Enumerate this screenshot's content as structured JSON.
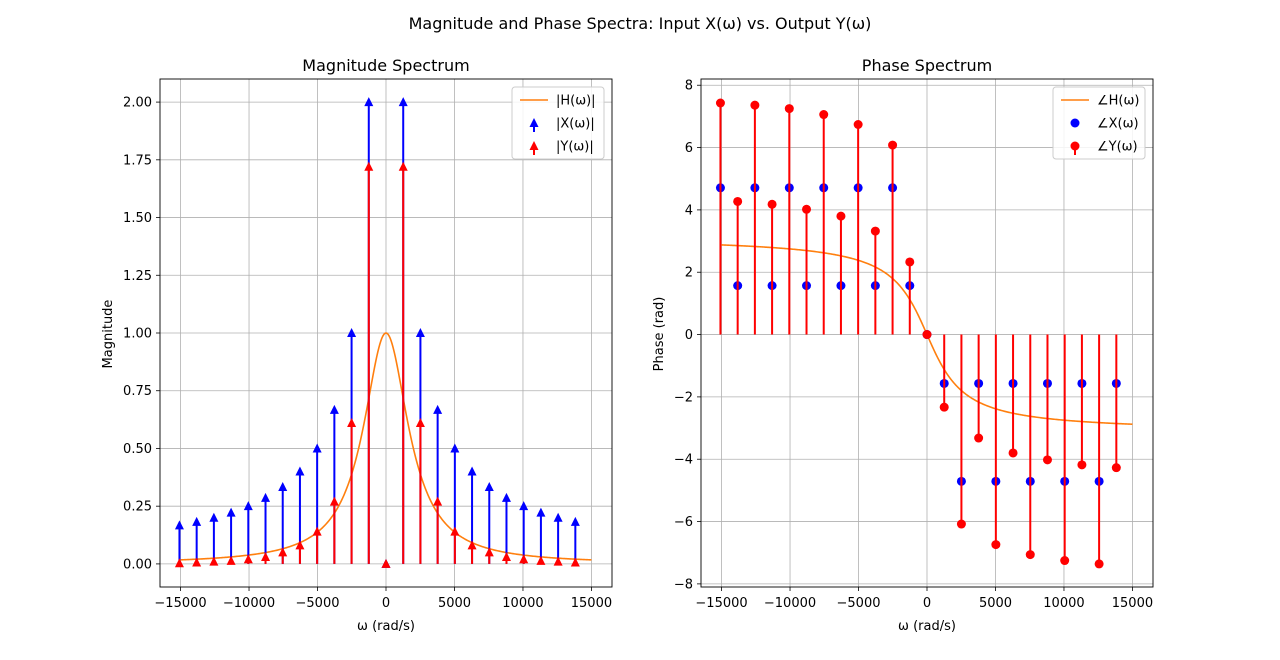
{
  "figure": {
    "suptitle": "Magnitude and Phase Spectra: Input X(ω) vs. Output Y(ω)"
  },
  "colors": {
    "input": "#0000ff",
    "output": "#ff0000",
    "filter": "#ff7f0e",
    "grid": "#b0b0b0"
  },
  "chart_data": [
    {
      "type": "stem",
      "title": "Magnitude Spectrum",
      "xlabel": "ω (rad/s)",
      "ylabel": "Magnitude",
      "xlim": [
        -16500,
        16500
      ],
      "ylim": [
        -0.1,
        2.1
      ],
      "xticks": [
        -15000,
        -10000,
        -5000,
        0,
        5000,
        10000,
        15000
      ],
      "xtick_labels": [
        "−15000",
        "−10000",
        "−5000",
        "0",
        "5000",
        "10000",
        "15000"
      ],
      "yticks": [
        0,
        0.25,
        0.5,
        0.75,
        1.0,
        1.25,
        1.5,
        1.75,
        2.0
      ],
      "ytick_labels": [
        "0.00",
        "0.25",
        "0.50",
        "0.75",
        "1.00",
        "1.25",
        "1.50",
        "1.75",
        "2.00"
      ],
      "grid": true,
      "legend_position": "top-right",
      "legend": [
        "|H(ω)|",
        "|X(ω)|",
        "|Y(ω)|"
      ],
      "series": [
        {
          "name": "|H(ω)|",
          "kind": "line",
          "curve": "lowpass_magnitude",
          "cutoff": 2000,
          "x_range": [
            -15000,
            15000
          ]
        },
        {
          "name": "|X(ω)|",
          "kind": "stem",
          "marker": "triangle",
          "x": [
            -15080,
            -13823,
            -12566,
            -11310,
            -10053,
            -8796,
            -7540,
            -6283,
            -5027,
            -3770,
            -2513,
            -1257,
            0,
            1257,
            2513,
            3770,
            5027,
            6283,
            7540,
            8796,
            10053,
            11310,
            12566,
            13823
          ],
          "y": [
            0.167,
            0.182,
            0.2,
            0.222,
            0.25,
            0.286,
            0.333,
            0.4,
            0.5,
            0.667,
            1.0,
            2.0,
            0,
            2.0,
            1.0,
            0.667,
            0.5,
            0.4,
            0.333,
            0.286,
            0.25,
            0.222,
            0.2,
            0.182
          ]
        },
        {
          "name": "|Y(ω)|",
          "kind": "stem",
          "marker": "triangle",
          "x": [
            -15080,
            -13823,
            -12566,
            -11310,
            -10053,
            -8796,
            -7540,
            -6283,
            -5027,
            -3770,
            -2513,
            -1257,
            0,
            1257,
            2513,
            3770,
            5027,
            6283,
            7540,
            8796,
            10053,
            11310,
            12566,
            13823
          ],
          "y": [
            0.003,
            0.006,
            0.01,
            0.013,
            0.02,
            0.03,
            0.05,
            0.08,
            0.14,
            0.27,
            0.61,
            1.72,
            0,
            1.72,
            0.61,
            0.27,
            0.14,
            0.08,
            0.05,
            0.03,
            0.02,
            0.013,
            0.01,
            0.006
          ]
        }
      ]
    },
    {
      "type": "stem",
      "title": "Phase Spectrum",
      "xlabel": "ω (rad/s)",
      "ylabel": "Phase (rad)",
      "xlim": [
        -16500,
        16500
      ],
      "ylim": [
        -8.1,
        8.2
      ],
      "xticks": [
        -15000,
        -10000,
        -5000,
        0,
        5000,
        10000,
        15000
      ],
      "xtick_labels": [
        "−15000",
        "−10000",
        "−5000",
        "0",
        "5000",
        "10000",
        "15000"
      ],
      "yticks": [
        -8,
        -6,
        -4,
        -2,
        0,
        2,
        4,
        6,
        8
      ],
      "ytick_labels": [
        "−8",
        "−6",
        "−4",
        "−2",
        "0",
        "2",
        "4",
        "6",
        "8"
      ],
      "grid": true,
      "legend_position": "top-right",
      "legend": [
        "∠H(ω)",
        "∠X(ω)",
        "∠Y(ω)"
      ],
      "series": [
        {
          "name": "∠H(ω)",
          "kind": "line",
          "curve": "lowpass_phase",
          "cutoff": 2000,
          "x_range": [
            -15000,
            15000
          ]
        },
        {
          "name": "∠X(ω)",
          "kind": "markers",
          "marker": "circle",
          "x": [
            -15080,
            -13823,
            -12566,
            -11310,
            -10053,
            -8796,
            -7540,
            -6283,
            -5027,
            -3770,
            -2513,
            -1257,
            0,
            1257,
            2513,
            3770,
            5027,
            6283,
            7540,
            8796,
            10053,
            11310,
            12566,
            13823
          ],
          "y": [
            4.71,
            1.57,
            4.71,
            1.57,
            4.71,
            1.57,
            4.71,
            1.57,
            4.71,
            1.57,
            4.71,
            1.57,
            0,
            -1.57,
            -4.71,
            -1.57,
            -4.71,
            -1.57,
            -4.71,
            -1.57,
            -4.71,
            -1.57,
            -4.71,
            -1.57
          ]
        },
        {
          "name": "∠Y(ω)",
          "kind": "stem",
          "marker": "circle",
          "x": [
            -15080,
            -13823,
            -12566,
            -11310,
            -10053,
            -8796,
            -7540,
            -6283,
            -5027,
            -3770,
            -2513,
            -1257,
            0,
            1257,
            2513,
            3770,
            5027,
            6283,
            7540,
            8796,
            10053,
            11310,
            12566,
            13823
          ],
          "y": [
            7.43,
            4.27,
            7.36,
            4.18,
            7.25,
            4.02,
            7.06,
            3.8,
            6.74,
            3.32,
            6.08,
            2.33,
            0,
            -2.33,
            -6.08,
            -3.32,
            -6.74,
            -3.8,
            -7.06,
            -4.02,
            -7.25,
            -4.18,
            -7.36,
            -4.27
          ]
        }
      ]
    }
  ]
}
